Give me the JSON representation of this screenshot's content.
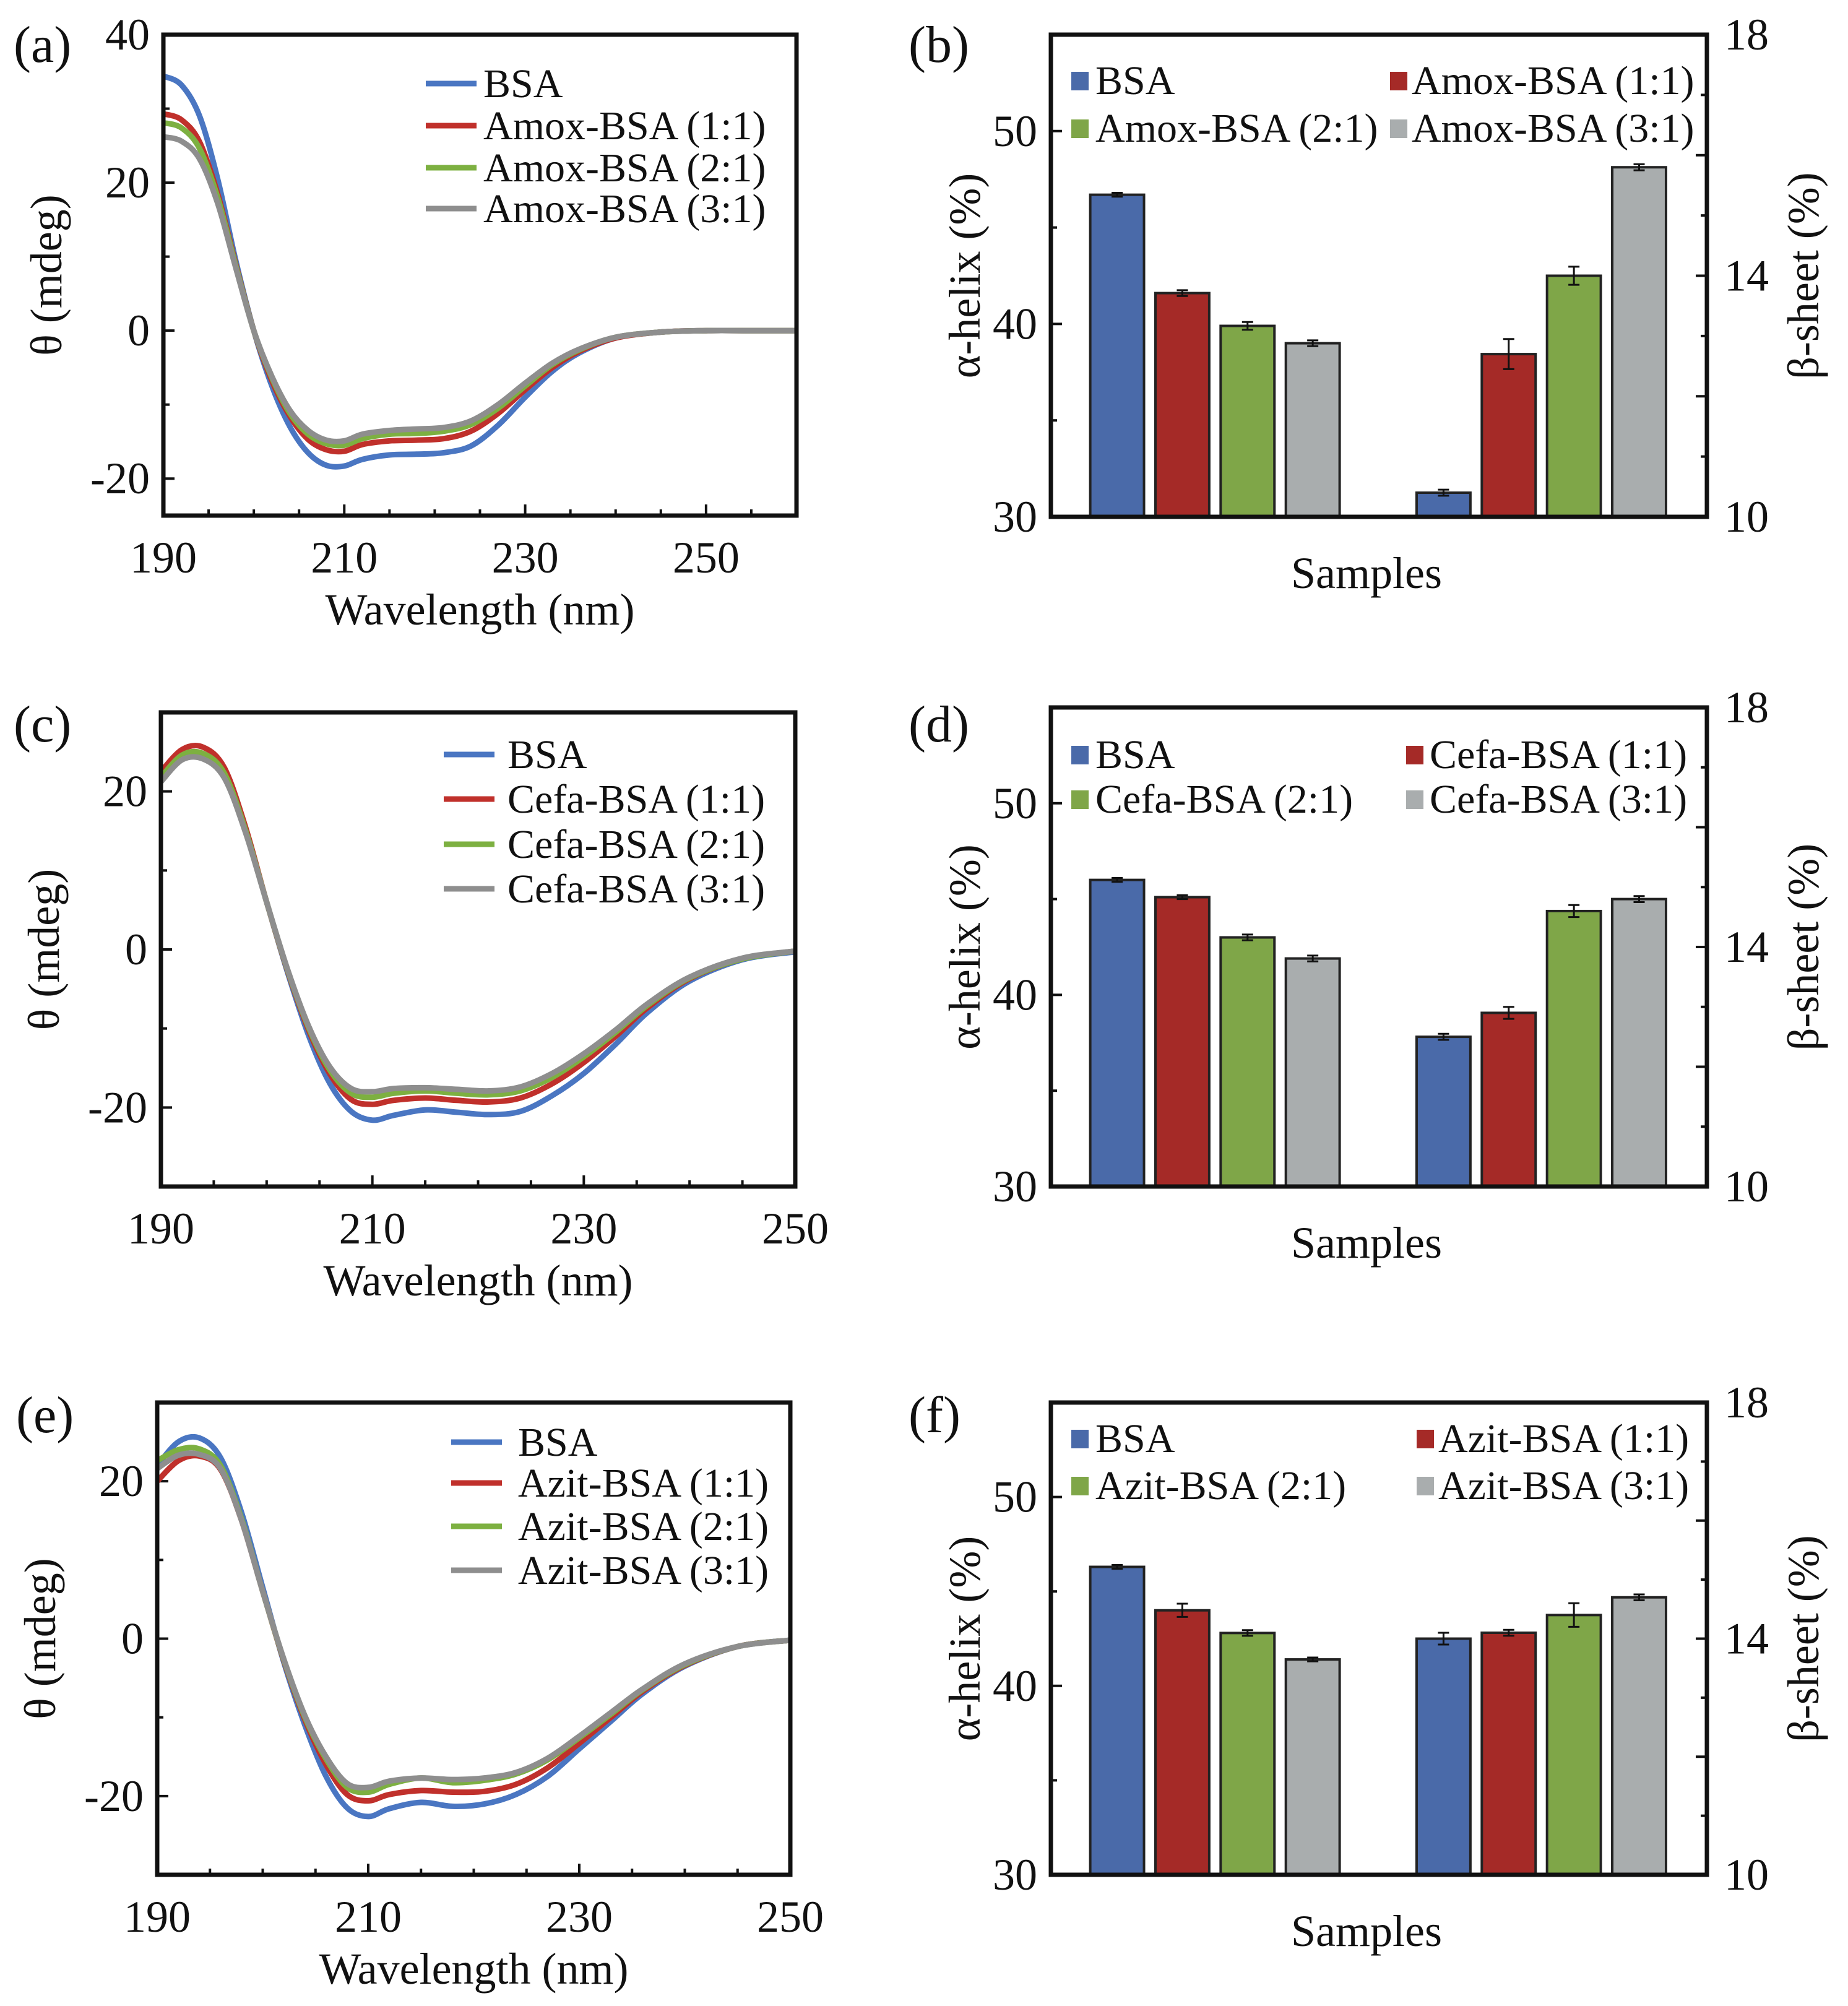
{
  "colors": {
    "line": {
      "BSA": "#4a76c2",
      "1:1": "#c0302b",
      "2:1": "#7db041",
      "3:1": "#8e8e8e"
    },
    "bar": {
      "BSA": "#4a6aa9",
      "1:1": "#a52a27",
      "2:1": "#7fa648",
      "3:1": "#a9adae"
    }
  },
  "chart_data": [
    {
      "panel": "(a)",
      "type": "line",
      "xlabel": "Wavelength (nm)",
      "ylabel": "θ (mdeg)",
      "xlim": [
        190,
        260
      ],
      "ylim": [
        -25,
        40
      ],
      "xticks": [
        "190",
        "210",
        "230",
        "250"
      ],
      "yticks": [
        "-20",
        "0",
        "20",
        "40"
      ],
      "legend": "top-right",
      "grid": false,
      "x": [
        190,
        192,
        194,
        196,
        198,
        200,
        202,
        204,
        206,
        208,
        210,
        212,
        215,
        218,
        221,
        224,
        227,
        230,
        233,
        236,
        240,
        245,
        250,
        255,
        260
      ],
      "series": [
        {
          "name": "BSA",
          "key": "BSA",
          "values": [
            34.4,
            33.2,
            29,
            20.5,
            9.5,
            0,
            -7.5,
            -13,
            -16.5,
            -18.2,
            -18.3,
            -17.4,
            -16.8,
            -16.7,
            -16.5,
            -15.6,
            -12.8,
            -9,
            -5.5,
            -3,
            -1,
            -0.2,
            0,
            0,
            0
          ]
        },
        {
          "name": "Amox-BSA (1:1)",
          "key": "1:1",
          "values": [
            29.3,
            28.5,
            25.5,
            18.5,
            9,
            0,
            -6.8,
            -11.6,
            -14.7,
            -16.1,
            -16.3,
            -15.4,
            -14.9,
            -14.8,
            -14.6,
            -13.6,
            -11.2,
            -8,
            -5,
            -2.8,
            -1,
            -0.2,
            0,
            0,
            0
          ]
        },
        {
          "name": "Amox-BSA (2:1)",
          "key": "2:1",
          "values": [
            28.1,
            27.4,
            24.6,
            18,
            8.8,
            0,
            -6.4,
            -11.2,
            -14,
            -15.3,
            -15.5,
            -14.6,
            -14,
            -13.9,
            -13.6,
            -12.7,
            -10.5,
            -7.5,
            -4.6,
            -2.6,
            -0.9,
            -0.2,
            0,
            0,
            0
          ]
        },
        {
          "name": "Amox-BSA (3:1)",
          "key": "3:1",
          "values": [
            26.2,
            25.6,
            23.2,
            17.2,
            8.5,
            0,
            -6.2,
            -10.8,
            -13.5,
            -14.8,
            -14.9,
            -14,
            -13.5,
            -13.3,
            -13.1,
            -12.2,
            -10,
            -7.1,
            -4.4,
            -2.5,
            -0.9,
            -0.2,
            0,
            0,
            0
          ]
        }
      ]
    },
    {
      "panel": "(b)",
      "type": "bar",
      "xlabel": "Samples",
      "ylabel_left": "α-helix (%)",
      "ylabel_right": "β-sheet (%)",
      "ylim_left": [
        30,
        55
      ],
      "ylim_right": [
        10,
        18
      ],
      "yticks_left": [
        "30",
        "40",
        "50"
      ],
      "yticks_right": [
        "10",
        "14",
        "18"
      ],
      "legend": "top",
      "series": [
        {
          "name": "BSA",
          "key": "BSA",
          "alpha_helix": 46.7,
          "alpha_err": 0.1,
          "beta_sheet": 10.4,
          "beta_err": 0.05
        },
        {
          "name": "Amox-BSA (1:1)",
          "key": "1:1",
          "alpha_helix": 41.6,
          "alpha_err": 0.15,
          "beta_sheet": 12.7,
          "beta_err": 0.25
        },
        {
          "name": "Amox-BSA (2:1)",
          "key": "2:1",
          "alpha_helix": 39.9,
          "alpha_err": 0.2,
          "beta_sheet": 14.0,
          "beta_err": 0.15
        },
        {
          "name": "Amox-BSA (3:1)",
          "key": "3:1",
          "alpha_helix": 39.0,
          "alpha_err": 0.15,
          "beta_sheet": 15.8,
          "beta_err": 0.05
        }
      ]
    },
    {
      "panel": "(c)",
      "type": "line",
      "xlabel": "Wavelength (nm)",
      "ylabel": "θ (mdeg)",
      "xlim": [
        190,
        250
      ],
      "ylim": [
        -30,
        30
      ],
      "xticks": [
        "190",
        "210",
        "230",
        "250"
      ],
      "yticks": [
        "-20",
        "0",
        "20"
      ],
      "legend": "top-right",
      "grid": false,
      "x": [
        190,
        192,
        194,
        196,
        198,
        200,
        202,
        204,
        206,
        208,
        210,
        212,
        215,
        218,
        221,
        224,
        227,
        230,
        233,
        236,
        240,
        245,
        250
      ],
      "series": [
        {
          "name": "BSA",
          "key": "BSA",
          "values": [
            21.5,
            24.2,
            24.5,
            22,
            15,
            6,
            -3,
            -11,
            -17,
            -20.5,
            -21.6,
            -21,
            -20.3,
            -20.6,
            -20.9,
            -20.5,
            -18.5,
            -15.7,
            -12,
            -8,
            -4,
            -1.3,
            -0.3
          ]
        },
        {
          "name": "Cefa-BSA (1:1)",
          "key": "1:1",
          "values": [
            22.5,
            25.3,
            25.6,
            23,
            15.5,
            6,
            -2.8,
            -10.3,
            -15.8,
            -19,
            -19.6,
            -19.1,
            -18.8,
            -19.1,
            -19.3,
            -18.8,
            -17,
            -14.3,
            -11,
            -7.4,
            -3.7,
            -1.2,
            -0.2
          ]
        },
        {
          "name": "Cefa-BSA (2:1)",
          "key": "2:1",
          "values": [
            21.8,
            24.6,
            24.8,
            22.3,
            15.1,
            6,
            -2.7,
            -10,
            -15.3,
            -18.2,
            -18.7,
            -18.2,
            -17.9,
            -18.2,
            -18.4,
            -17.9,
            -16.2,
            -13.6,
            -10.5,
            -7.1,
            -3.6,
            -1.2,
            -0.2
          ]
        },
        {
          "name": "Cefa-BSA (3:1)",
          "key": "3:1",
          "values": [
            21.2,
            24,
            24.1,
            21.7,
            14.8,
            6,
            -2.6,
            -9.8,
            -14.9,
            -17.6,
            -18,
            -17.6,
            -17.5,
            -17.7,
            -17.9,
            -17.4,
            -15.7,
            -13.2,
            -10.2,
            -6.9,
            -3.5,
            -1.1,
            -0.2
          ]
        }
      ]
    },
    {
      "panel": "(d)",
      "type": "bar",
      "xlabel": "Samples",
      "ylabel_left": "α-helix (%)",
      "ylabel_right": "β-sheet (%)",
      "ylim_left": [
        30,
        55
      ],
      "ylim_right": [
        10,
        18
      ],
      "yticks_left": [
        "30",
        "40",
        "50"
      ],
      "yticks_right": [
        "10",
        "14",
        "18"
      ],
      "legend": "top",
      "series": [
        {
          "name": "BSA",
          "key": "BSA",
          "alpha_helix": 46.0,
          "alpha_err": 0.1,
          "beta_sheet": 12.5,
          "beta_err": 0.05
        },
        {
          "name": "Cefa-BSA (1:1)",
          "key": "1:1",
          "alpha_helix": 45.1,
          "alpha_err": 0.1,
          "beta_sheet": 12.9,
          "beta_err": 0.1
        },
        {
          "name": "Cefa-BSA (2:1)",
          "key": "2:1",
          "alpha_helix": 43.0,
          "alpha_err": 0.15,
          "beta_sheet": 14.6,
          "beta_err": 0.1
        },
        {
          "name": "Cefa-BSA (3:1)",
          "key": "3:1",
          "alpha_helix": 41.9,
          "alpha_err": 0.15,
          "beta_sheet": 14.8,
          "beta_err": 0.05
        }
      ]
    },
    {
      "panel": "(e)",
      "type": "line",
      "xlabel": "Wavelength (nm)",
      "ylabel": "θ (mdeg)",
      "xlim": [
        190,
        250
      ],
      "ylim": [
        -30,
        30
      ],
      "xticks": [
        "190",
        "210",
        "230",
        "250"
      ],
      "yticks": [
        "-20",
        "0",
        "20"
      ],
      "legend": "top-right",
      "grid": false,
      "x": [
        190,
        192,
        194,
        196,
        198,
        200,
        202,
        204,
        206,
        208,
        210,
        212,
        215,
        218,
        221,
        224,
        227,
        230,
        233,
        236,
        240,
        245,
        250
      ],
      "series": [
        {
          "name": "BSA",
          "key": "BSA",
          "values": [
            22,
            25,
            25.5,
            23,
            16,
            6.5,
            -3,
            -11,
            -17.5,
            -21.5,
            -22.6,
            -21.6,
            -20.8,
            -21.3,
            -21,
            -19.8,
            -17.5,
            -14,
            -10.5,
            -7,
            -3.5,
            -1,
            -0.2
          ]
        },
        {
          "name": "Azit-BSA (1:1)",
          "key": "1:1",
          "values": [
            20,
            22.6,
            23.2,
            21.5,
            15,
            6,
            -2.8,
            -10.3,
            -16,
            -19.8,
            -20.6,
            -19.8,
            -19.3,
            -19.5,
            -19.4,
            -18.5,
            -16.4,
            -13.3,
            -10,
            -6.7,
            -3.4,
            -1,
            -0.2
          ]
        },
        {
          "name": "Azit-BSA (2:1)",
          "key": "2:1",
          "values": [
            22.6,
            24,
            24.1,
            22,
            15.2,
            6,
            -2.7,
            -10,
            -15.3,
            -18.9,
            -19.5,
            -18.5,
            -17.7,
            -18.3,
            -18,
            -17.2,
            -15.4,
            -12.6,
            -9.6,
            -6.5,
            -3.3,
            -1,
            -0.2
          ]
        },
        {
          "name": "Azit-BSA (3:1)",
          "key": "3:1",
          "values": [
            21.6,
            23.3,
            23.4,
            21.6,
            15,
            6,
            -2.6,
            -9.8,
            -15,
            -18.4,
            -18.9,
            -18.1,
            -17.7,
            -17.9,
            -17.7,
            -17,
            -15.2,
            -12.4,
            -9.4,
            -6.4,
            -3.2,
            -1,
            -0.2
          ]
        }
      ]
    },
    {
      "panel": "(f)",
      "type": "bar",
      "xlabel": "Samples",
      "ylabel_left": "α-helix (%)",
      "ylabel_right": "β-sheet (%)",
      "ylim_left": [
        30,
        55
      ],
      "ylim_right": [
        10,
        18
      ],
      "yticks_left": [
        "30",
        "40",
        "50"
      ],
      "yticks_right": [
        "10",
        "14",
        "18"
      ],
      "legend": "top",
      "series": [
        {
          "name": "BSA",
          "key": "BSA",
          "alpha_helix": 46.3,
          "alpha_err": 0.1,
          "beta_sheet": 14.0,
          "beta_err": 0.1
        },
        {
          "name": "Azit-BSA (1:1)",
          "key": "1:1",
          "alpha_helix": 44.0,
          "alpha_err": 0.35,
          "beta_sheet": 14.1,
          "beta_err": 0.05
        },
        {
          "name": "Azit-BSA (2:1)",
          "key": "2:1",
          "alpha_helix": 42.8,
          "alpha_err": 0.15,
          "beta_sheet": 14.4,
          "beta_err": 0.2
        },
        {
          "name": "Azit-BSA (3:1)",
          "key": "3:1",
          "alpha_helix": 41.4,
          "alpha_err": 0.1,
          "beta_sheet": 14.7,
          "beta_err": 0.05
        }
      ]
    }
  ]
}
